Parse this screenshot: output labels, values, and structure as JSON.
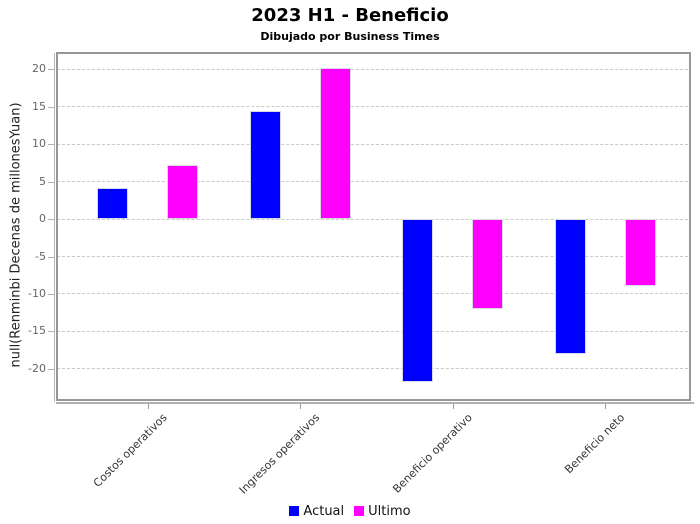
{
  "page": {
    "title": "2023 H1 - Beneficio",
    "subtitle": "Dibujado por Business Times"
  },
  "chart_data": {
    "type": "bar",
    "title": "2023 H1 - Beneficio",
    "subtitle": "Dibujado por Business Times",
    "categories": [
      "Costos operativos",
      "Ingresos operativos",
      "Beneficio operativo",
      "Beneficio neto"
    ],
    "series": [
      {
        "name": "Actual",
        "color": "#0000ff",
        "values": [
          4.2,
          14.5,
          -21.8,
          -18.0
        ]
      },
      {
        "name": "Ultimo",
        "color": "#ff00ff",
        "values": [
          7.3,
          20.2,
          -12.0,
          -9.0
        ]
      }
    ],
    "xlabel": "",
    "ylabel": "null(Renminbi Decenas de millonesYuan)",
    "y_ticks": [
      20,
      15,
      10,
      5,
      0,
      -5,
      -10,
      -15,
      -20
    ],
    "ylim": [
      -23.9,
      22.2
    ],
    "grid": true,
    "grid_style": "dashed",
    "legend_position": "bottom"
  }
}
